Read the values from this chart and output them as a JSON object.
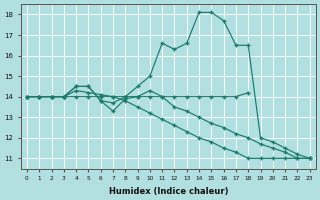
{
  "xlabel": "Humidex (Indice chaleur)",
  "bg_color": "#b2dfdf",
  "grid_color": "#ffffff",
  "line_color": "#1a7a6e",
  "xlim": [
    -0.5,
    23.5
  ],
  "ylim": [
    10.5,
    18.5
  ],
  "xticks": [
    0,
    1,
    2,
    3,
    4,
    5,
    6,
    7,
    8,
    9,
    10,
    11,
    12,
    13,
    14,
    15,
    16,
    17,
    18,
    19,
    20,
    21,
    22,
    23
  ],
  "yticks": [
    11,
    12,
    13,
    14,
    15,
    16,
    17,
    18
  ],
  "series": [
    {
      "x": [
        0,
        1,
        2,
        3,
        4,
        5,
        6,
        7,
        8,
        9,
        10,
        11,
        12,
        13,
        14,
        15,
        16,
        17,
        18
      ],
      "y": [
        14.0,
        14.0,
        14.0,
        14.0,
        14.0,
        14.0,
        14.0,
        14.0,
        14.0,
        14.0,
        14.0,
        14.0,
        14.0,
        14.0,
        14.0,
        14.0,
        14.0,
        14.0,
        14.2
      ]
    },
    {
      "x": [
        0,
        1,
        2,
        3,
        4,
        5,
        6,
        7,
        8,
        9,
        10,
        11,
        12,
        13,
        14,
        15,
        16,
        17,
        18,
        19,
        20,
        21,
        22,
        23
      ],
      "y": [
        14.0,
        14.0,
        14.0,
        14.0,
        14.5,
        14.5,
        13.8,
        13.7,
        14.0,
        14.5,
        15.0,
        16.6,
        16.3,
        16.6,
        18.1,
        18.1,
        17.7,
        16.5,
        16.5,
        12.0,
        11.8,
        11.5,
        11.2,
        11.0
      ]
    },
    {
      "x": [
        0,
        1,
        2,
        3,
        4,
        5,
        6,
        7,
        8,
        9,
        10,
        11,
        12,
        13,
        14,
        15,
        16,
        17,
        18,
        19,
        20,
        21,
        22,
        23
      ],
      "y": [
        14.0,
        14.0,
        14.0,
        14.0,
        14.5,
        14.5,
        13.8,
        13.3,
        13.9,
        14.0,
        14.3,
        14.0,
        13.5,
        13.3,
        13.0,
        12.7,
        12.5,
        12.2,
        12.0,
        11.7,
        11.5,
        11.3,
        11.0,
        11.0
      ]
    },
    {
      "x": [
        0,
        1,
        2,
        3,
        4,
        5,
        6,
        7,
        8,
        9,
        10,
        11,
        12,
        13,
        14,
        15,
        16,
        17,
        18,
        19,
        20,
        21,
        22,
        23
      ],
      "y": [
        14.0,
        14.0,
        14.0,
        14.0,
        14.3,
        14.2,
        14.1,
        14.0,
        13.8,
        13.5,
        13.2,
        12.9,
        12.6,
        12.3,
        12.0,
        11.8,
        11.5,
        11.3,
        11.0,
        11.0,
        11.0,
        11.0,
        11.0,
        11.0
      ]
    }
  ]
}
